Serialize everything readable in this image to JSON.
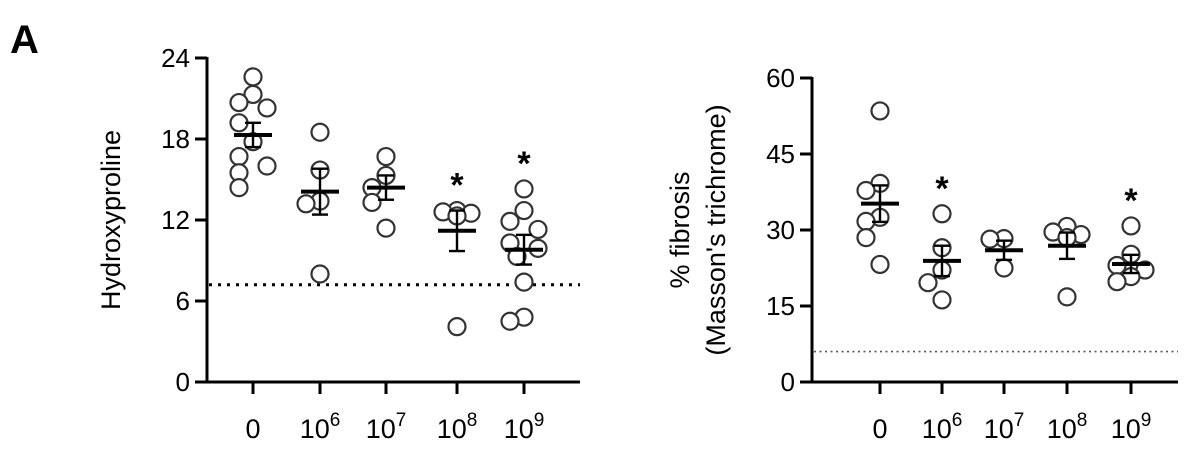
{
  "panel_label": "A",
  "chart_data": [
    {
      "type": "scatter",
      "ylabel": [
        "Hydroxyproline"
      ],
      "ylim": [
        0,
        24
      ],
      "yticks": [
        0,
        6,
        12,
        18,
        24
      ],
      "categories": [
        {
          "base": "0",
          "exp": ""
        },
        {
          "base": "10",
          "exp": "6"
        },
        {
          "base": "10",
          "exp": "7"
        },
        {
          "base": "10",
          "exp": "8"
        },
        {
          "base": "10",
          "exp": "9"
        }
      ],
      "points": [
        [
          22.6,
          21.3,
          20.7,
          20.3,
          19.2,
          17.8,
          16.7,
          16.0,
          15.5,
          14.4
        ],
        [
          18.5,
          15.7,
          13.4,
          13.2,
          8.0
        ],
        [
          16.7,
          15.3,
          14.4,
          13.3,
          11.4
        ],
        [
          12.7,
          12.6,
          12.5,
          12.3,
          4.1
        ],
        [
          14.3,
          12.7,
          11.9,
          11.3,
          10.3,
          9.9,
          9.3,
          7.4,
          4.8,
          4.5
        ]
      ],
      "mean": [
        18.3,
        14.1,
        14.4,
        11.2,
        9.8
      ],
      "sem": [
        0.9,
        1.7,
        0.9,
        1.5,
        1.1
      ],
      "significant": [
        false,
        false,
        false,
        true,
        true
      ],
      "sig_marker": "*",
      "reference_line": 7.2
    },
    {
      "type": "scatter",
      "ylabel": [
        "% fibrosis",
        "(Masson's trichrome)"
      ],
      "ylim": [
        0,
        60
      ],
      "yticks": [
        0,
        15,
        30,
        45,
        60
      ],
      "categories": [
        {
          "base": "0",
          "exp": ""
        },
        {
          "base": "10",
          "exp": "6"
        },
        {
          "base": "10",
          "exp": "7"
        },
        {
          "base": "10",
          "exp": "8"
        },
        {
          "base": "10",
          "exp": "9"
        }
      ],
      "points": [
        [
          53.5,
          39.2,
          37.8,
          32.5,
          31.7,
          28.5,
          23.2
        ],
        [
          33.2,
          26.5,
          22.1,
          19.6,
          16.2
        ],
        [
          28.3,
          28.2,
          22.5
        ],
        [
          30.7,
          29.6,
          29.1,
          28.5,
          16.8
        ],
        [
          30.8,
          25.2,
          23.0,
          22.1,
          20.8,
          19.8
        ]
      ],
      "mean": [
        35.2,
        23.9,
        26.0,
        26.9,
        23.3
      ],
      "sem": [
        3.6,
        3.0,
        1.9,
        2.6,
        1.8
      ],
      "significant": [
        false,
        true,
        false,
        false,
        true
      ],
      "sig_marker": "*",
      "reference_line": 6.0
    }
  ]
}
